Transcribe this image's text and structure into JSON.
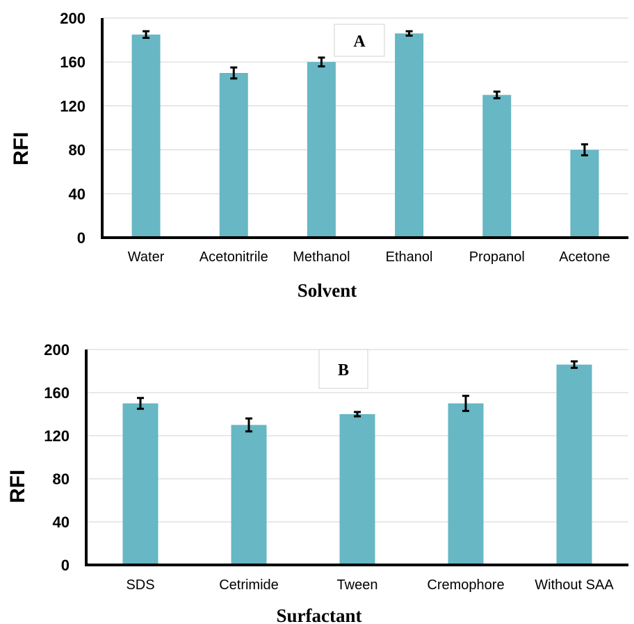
{
  "chart_data": [
    {
      "type": "bar",
      "panel_label": "A",
      "xlabel": "Solvent",
      "ylabel": "RFI",
      "ylim": [
        0,
        200
      ],
      "yticks": [
        "0",
        "40",
        "80",
        "120",
        "160",
        "200"
      ],
      "grid": true,
      "bar_color": "#67b7c4",
      "categories": [
        "Water",
        "Acetonitrile",
        "Methanol",
        "Ethanol",
        "Propanol",
        "Acetone"
      ],
      "values": [
        185,
        150,
        160,
        186,
        130,
        80
      ],
      "errors": [
        3,
        5,
        4,
        2,
        3,
        5
      ]
    },
    {
      "type": "bar",
      "panel_label": "B",
      "xlabel": "Surfactant",
      "ylabel": "RFI",
      "ylim": [
        0,
        200
      ],
      "yticks": [
        "0",
        "40",
        "80",
        "120",
        "160",
        "200"
      ],
      "grid": true,
      "bar_color": "#67b7c4",
      "categories": [
        "SDS",
        "Cetrimide",
        "Tween",
        "Cremophore",
        "Without SAA"
      ],
      "values": [
        150,
        130,
        140,
        150,
        186
      ],
      "errors": [
        5,
        6,
        2,
        7,
        3
      ]
    }
  ]
}
